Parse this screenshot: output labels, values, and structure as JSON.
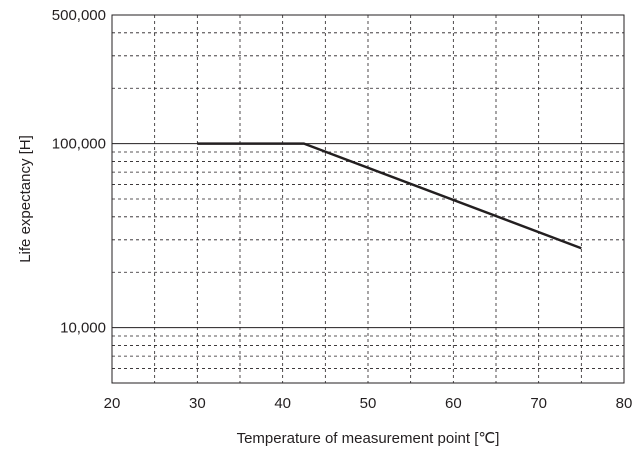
{
  "chart_data": {
    "type": "line",
    "title": "",
    "xlabel": "Temperature of measurement point [℃]",
    "ylabel": "Life expectancy [H]",
    "xlim": [
      20,
      80
    ],
    "ylim": [
      5000,
      500000
    ],
    "y_scale": "log",
    "grid": true,
    "x_ticks": [
      20,
      30,
      40,
      50,
      60,
      70,
      80
    ],
    "x_tick_labels": [
      "20",
      "30",
      "40",
      "50",
      "60",
      "70",
      "80"
    ],
    "y_tick_labels": [
      {
        "value": 10000,
        "label": "10,000"
      },
      {
        "value": 100000,
        "label": "100,000"
      },
      {
        "value": 500000,
        "label": "500,000"
      }
    ],
    "series": [
      {
        "x": [
          30,
          42.5,
          75
        ],
        "y": [
          100000,
          100000,
          27000
        ]
      }
    ],
    "colors": {
      "line": "#231f20",
      "grid": "#231f20",
      "axis": "#231f20"
    }
  }
}
